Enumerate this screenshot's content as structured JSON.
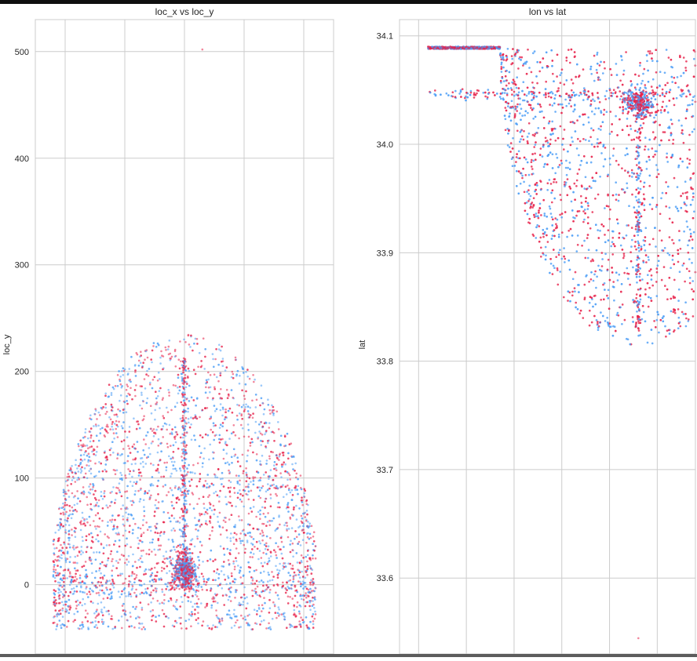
{
  "colors": {
    "series_a": "#e8234a",
    "series_b": "#4a9cf5",
    "grid": "#cccccc",
    "axes_border": "#cccccc",
    "text": "#262626",
    "background": "#ffffff"
  },
  "chart_data": [
    {
      "type": "scatter",
      "title": "loc_x vs loc_y",
      "xlabel": "",
      "ylabel": "loc_y",
      "xlim": [
        -250,
        250
      ],
      "ylim": [
        -65,
        530
      ],
      "yticks": [
        0,
        100,
        200,
        300,
        400,
        500
      ],
      "xgrid": [
        -200,
        -100,
        0,
        100,
        200
      ],
      "x_tick_labels_shown": false,
      "grid": true,
      "legend": "none",
      "series": [
        {
          "color": "#e8234a",
          "alpha": 0.55
        },
        {
          "color": "#4a9cf5",
          "alpha": 0.55
        }
      ],
      "description_points": {
        "outlier": {
          "x": 30,
          "y": 502
        },
        "shape": "arc-shaped shot cloud spanning x -220 to 220, y -45 to 235, dense cluster near (0, 10), vertical line at x=0"
      }
    },
    {
      "type": "scatter",
      "title": "lon vs lat",
      "xlabel": "",
      "ylabel": "lat",
      "xlim": [
        -118.52,
        -118.21
      ],
      "ylim": [
        33.53,
        34.115
      ],
      "yticks": [
        33.6,
        33.7,
        33.8,
        33.9,
        34.0,
        34.1
      ],
      "y_tick_labels": [
        "33.6",
        "33.7",
        "33.8",
        "33.9",
        "34.0",
        "34.1"
      ],
      "xgrid": [
        -118.5,
        -118.45,
        -118.4,
        -118.35,
        -118.3,
        -118.25
      ],
      "x_tick_labels_shown": false,
      "grid": true,
      "legend": "none",
      "series": [
        {
          "color": "#e8234a",
          "alpha": 0.55
        },
        {
          "color": "#4a9cf5",
          "alpha": 0.55
        }
      ],
      "description_points": {
        "outlier": {
          "x": -118.2698,
          "y": 33.5445
        },
        "shape": "inverted arc cloud spanning lon -118.49 to -118.21, lat 33.81 to 34.09, dense cluster near (-118.2698, 34.04)"
      }
    }
  ]
}
